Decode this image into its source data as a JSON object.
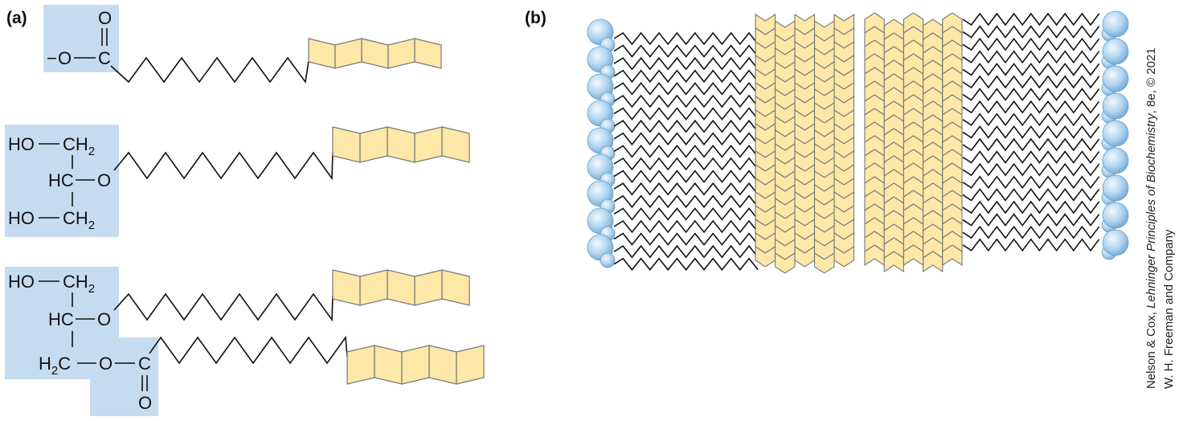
{
  "panels": {
    "a": {
      "label": "(a)"
    },
    "b": {
      "label": "(b)"
    }
  },
  "molecule_1": {
    "minus": "−",
    "o_left": "O",
    "c": "C",
    "o_top": "O"
  },
  "molecule_2": {
    "ho_top": "HO",
    "ch2_top": "CH",
    "ch2_top_sub": "2",
    "hc": "HC",
    "o_mid": "O",
    "ho_bottom": "HO",
    "ch2_bottom": "CH",
    "ch2_bottom_sub": "2"
  },
  "molecule_3": {
    "ho_top": "HO",
    "ch2_top": "CH",
    "ch2_top_sub": "2",
    "hc": "HC",
    "o_mid": "O",
    "h2c": "H",
    "h2c_sub": "2",
    "h2c_c": "C",
    "o_ester": "O",
    "c_ester": "C",
    "o_carbonyl": "O"
  },
  "credit": {
    "line1_prefix": "Nelson & Cox, ",
    "line1_title": "Lehninger Principles of Biochemistry",
    "line1_suffix": ", 8e, © 2021",
    "line2": "W. H. Freeman and Company"
  },
  "colors": {
    "headgroup_box": "#c5dcf0",
    "fluorinated_segment": "#fde8a8",
    "segment_stroke": "#777777",
    "bond": "#111111",
    "sphere_light": "#e6f3fc",
    "sphere_dark": "#7fb4dd"
  }
}
